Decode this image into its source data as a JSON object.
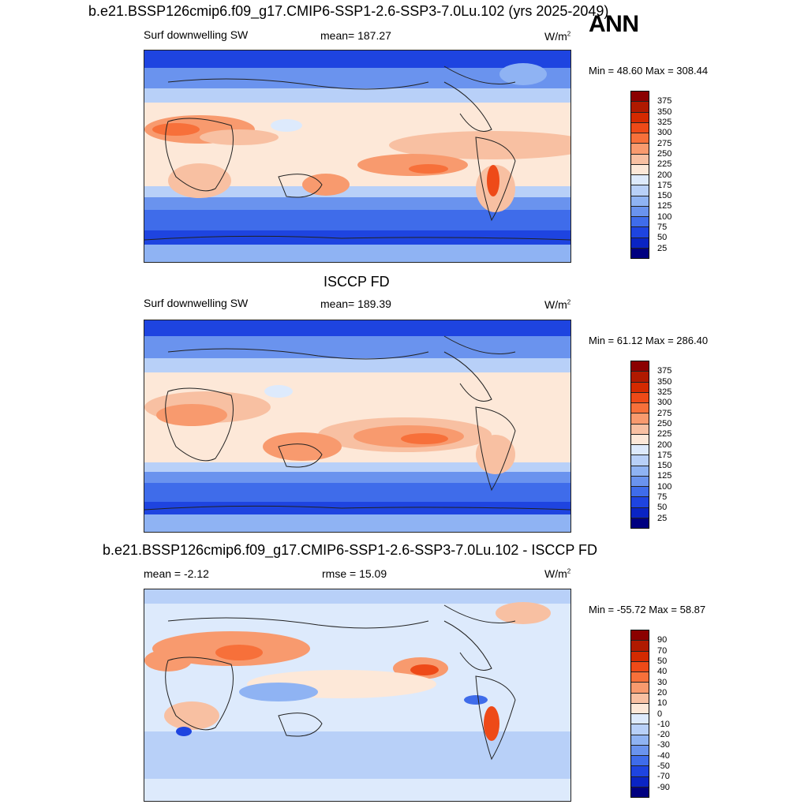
{
  "panels": [
    {
      "title": "b.e21.BSSP126cmip6.f09_g17.CMIP6-SSP1-2.6-SSP3-7.0Lu.102 (yrs 2025-2049)",
      "left_label": "Surf downwelling SW",
      "center_label": "mean= 187.27",
      "units": "W/m",
      "units_sup": "2",
      "minmax": "Min =  48.60 Max = 308.44",
      "map_name": "model-surface-sw-map"
    },
    {
      "title": "ISCCP FD",
      "left_label": "Surf downwelling SW",
      "center_label": "mean= 189.39",
      "units": "W/m",
      "units_sup": "2",
      "minmax": "Min =  61.12 Max = 286.40",
      "map_name": "isccp-surface-sw-map"
    },
    {
      "title": "b.e21.BSSP126cmip6.f09_g17.CMIP6-SSP1-2.6-SSP3-7.0Lu.102 - ISCCP FD",
      "left_label": "mean =  -2.12",
      "center_label": "rmse =  15.09",
      "units": "W/m",
      "units_sup": "2",
      "minmax": "Min = -55.72 Max =  58.87",
      "map_name": "difference-map"
    }
  ],
  "season": "ANN",
  "colorbar_abs": {
    "labels": [
      "375",
      "350",
      "325",
      "300",
      "275",
      "250",
      "225",
      "200",
      "175",
      "150",
      "125",
      "100",
      "75",
      "50",
      "25"
    ],
    "colors": [
      "#8b0000",
      "#b01a00",
      "#d42a00",
      "#ee4a18",
      "#f7703a",
      "#f89a6e",
      "#f8c0a2",
      "#fde8d8",
      "#ddeafc",
      "#b8d0f8",
      "#8fb3f3",
      "#6a93ee",
      "#3f6cea",
      "#1e44e0",
      "#0a24c4",
      "#000080"
    ]
  },
  "colorbar_diff": {
    "labels": [
      "90",
      "70",
      "50",
      "40",
      "30",
      "20",
      "10",
      "0",
      "-10",
      "-20",
      "-30",
      "-40",
      "-50",
      "-70",
      "-90"
    ],
    "colors": [
      "#8b0000",
      "#b01a00",
      "#d42a00",
      "#ee4a18",
      "#f7703a",
      "#f89a6e",
      "#f8c0a2",
      "#fde8d8",
      "#ddeafc",
      "#b8d0f8",
      "#8fb3f3",
      "#6a93ee",
      "#3f6cea",
      "#1e44e0",
      "#0a24c4",
      "#000080"
    ]
  }
}
